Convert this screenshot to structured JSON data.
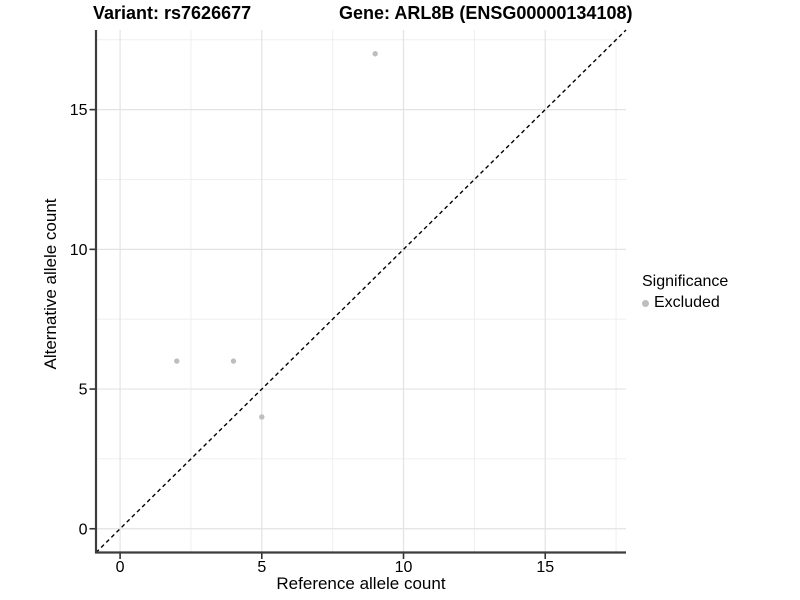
{
  "figure": {
    "title_variant": "Variant: rs7626677",
    "title_gene": "Gene: ARL8B (ENSG00000134108)",
    "x_axis_label": "Reference allele count",
    "y_axis_label": "Alternative allele count"
  },
  "legend": {
    "title": "Significance",
    "items": [
      {
        "label": "Excluded",
        "marker": "circle-icon",
        "color": "#bebebe"
      }
    ]
  },
  "chart_data": {
    "type": "scatter",
    "title": "Variant: rs7626677   Gene: ARL8B (ENSG00000134108)",
    "xlabel": "Reference allele count",
    "ylabel": "Alternative allele count",
    "xlim": [
      -0.85,
      17.85
    ],
    "ylim": [
      -0.85,
      17.85
    ],
    "x_major_ticks": [
      0,
      5,
      10,
      15
    ],
    "y_major_ticks": [
      0,
      5,
      10,
      15
    ],
    "minor_grid_step": 2.5,
    "grid": "on",
    "legend_position": "right-center",
    "series": [
      {
        "name": "Excluded",
        "color": "#bebebe",
        "marker": "point",
        "points": [
          {
            "x": 2,
            "y": 6
          },
          {
            "x": 4,
            "y": 6
          },
          {
            "x": 5,
            "y": 4
          },
          {
            "x": 9,
            "y": 17
          }
        ]
      }
    ],
    "reference_line": {
      "slope": 1,
      "intercept": 0,
      "style": "dashed",
      "color": "#000000"
    }
  },
  "colors": {
    "background": "#ffffff",
    "point": "#bebebe",
    "grid_major": "#e3e3e3",
    "grid_minor": "#efefef",
    "axis_line": "#3d3d3d",
    "tick_mark": "#333333",
    "text": "#000000"
  }
}
